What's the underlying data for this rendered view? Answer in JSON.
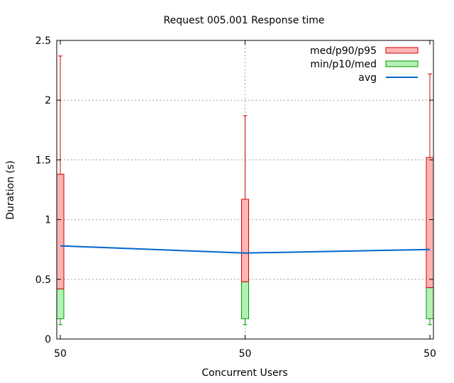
{
  "chart_data": {
    "type": "boxplot",
    "title": "Request 005.001 Response time",
    "xlabel": "Concurrent Users",
    "ylabel": "Duration (s)",
    "ylim": [
      0,
      2.5
    ],
    "yticks": [
      "0",
      "0.5",
      "1",
      "1.5",
      "2",
      "2.5"
    ],
    "grid": true,
    "legend_position": "top-right",
    "categories": [
      "50",
      "50",
      "50"
    ],
    "series": [
      {
        "name": "med/p90/p95",
        "color": "#cc0000",
        "fill": "#ffb3b3",
        "med": [
          0.42,
          0.48,
          0.43
        ],
        "p90": [
          1.38,
          1.17,
          1.52
        ],
        "p95": [
          2.37,
          1.87,
          2.22
        ]
      },
      {
        "name": "min/p10/med",
        "color": "#009900",
        "fill": "#b3f0b3",
        "min": [
          0.12,
          0.12,
          0.12
        ],
        "p10": [
          0.17,
          0.17,
          0.17
        ],
        "med": [
          0.42,
          0.48,
          0.43
        ]
      },
      {
        "name": "avg",
        "color": "#0066cc",
        "values": [
          0.78,
          0.72,
          0.75
        ]
      }
    ]
  }
}
